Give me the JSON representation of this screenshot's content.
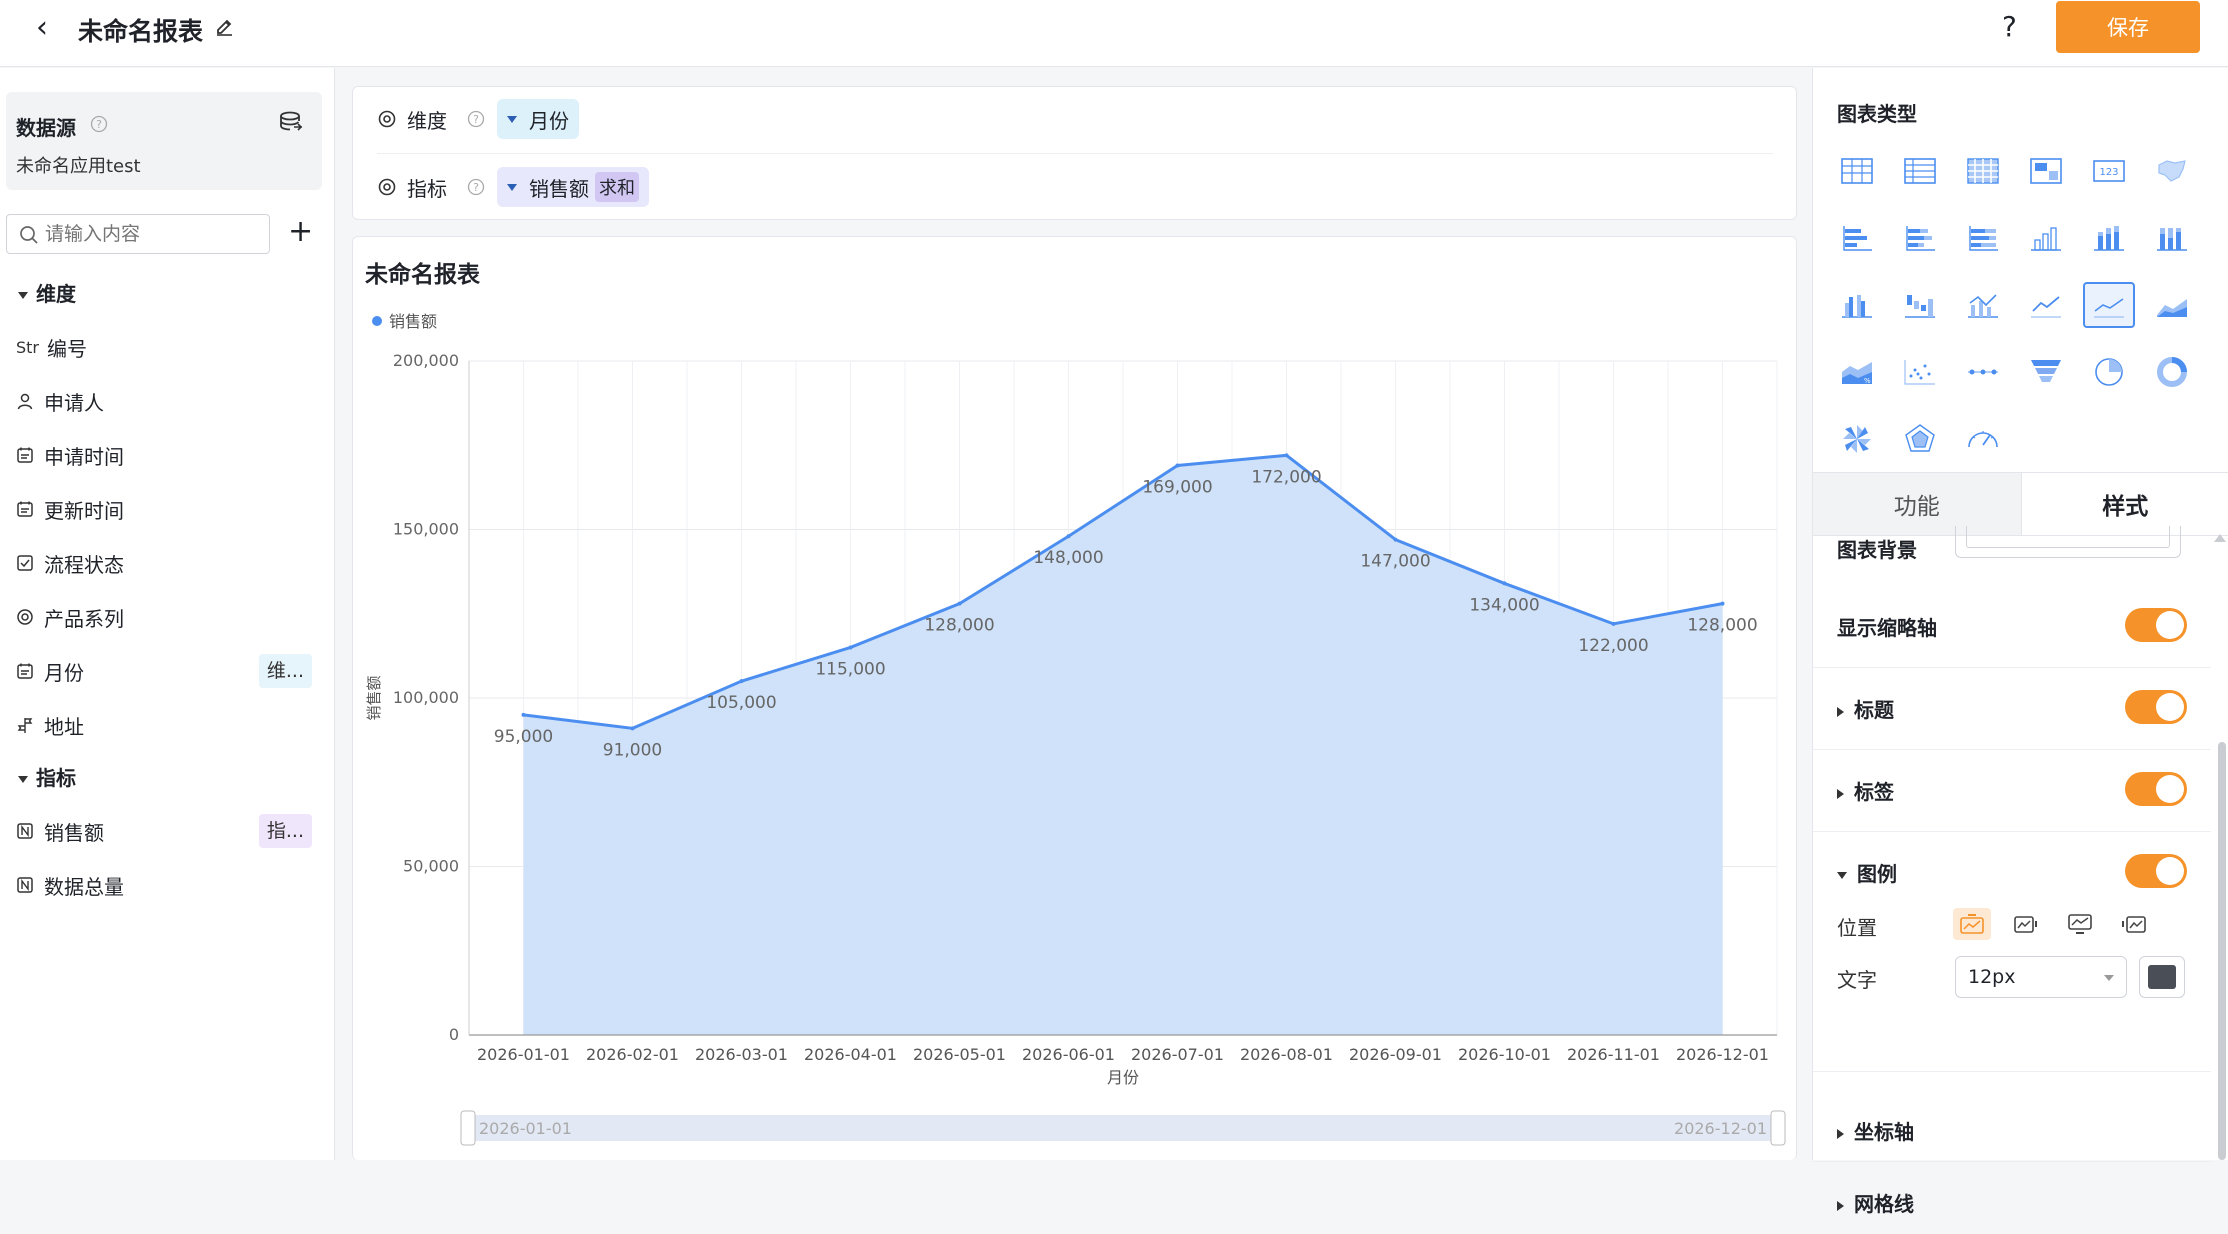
{
  "header": {
    "title": "未命名报表",
    "help": "?",
    "save_label": "保存"
  },
  "datasource": {
    "title": "数据源",
    "name": "未命名应用test"
  },
  "search": {
    "placeholder": "请输入内容"
  },
  "dimensions": {
    "label": "维度",
    "items": [
      {
        "label": "编号",
        "prefix": "Str",
        "icon": "string-icon"
      },
      {
        "label": "申请人",
        "icon": "user-icon"
      },
      {
        "label": "申请时间",
        "icon": "calendar-icon"
      },
      {
        "label": "更新时间",
        "icon": "calendar-icon"
      },
      {
        "label": "流程状态",
        "icon": "checkbox-icon"
      },
      {
        "label": "产品系列",
        "icon": "radio-icon"
      },
      {
        "label": "月份",
        "icon": "calendar-icon",
        "tag": "维..."
      },
      {
        "label": "地址",
        "icon": "location-icon"
      }
    ]
  },
  "metrics": {
    "label": "指标",
    "items": [
      {
        "label": "销售额",
        "icon": "number-icon",
        "tag": "指..."
      },
      {
        "label": "数据总量",
        "icon": "number-icon"
      }
    ]
  },
  "config": {
    "dimension_label": "维度",
    "dimension_value": "月份",
    "metric_label": "指标",
    "metric_value": "销售额",
    "metric_agg": "求和"
  },
  "chart_data": {
    "type": "area",
    "title": "未命名报表",
    "legend": "销售额",
    "legend_position": "top-left",
    "xlabel": "月份",
    "ylabel": "销售额",
    "categories": [
      "2026-01-01",
      "2026-02-01",
      "2026-03-01",
      "2026-04-01",
      "2026-05-01",
      "2026-06-01",
      "2026-07-01",
      "2026-08-01",
      "2026-09-01",
      "2026-10-01",
      "2026-11-01",
      "2026-12-01"
    ],
    "series": [
      {
        "name": "销售额",
        "values": [
          95000,
          91000,
          105000,
          115000,
          128000,
          148000,
          169000,
          172000,
          147000,
          134000,
          122000,
          128000
        ]
      }
    ],
    "data_labels": [
      "95,000",
      "91,000",
      "105,000",
      "115,000",
      "128,000",
      "148,000",
      "169,000",
      "172,000",
      "147,000",
      "134,000",
      "122,000",
      "128,000"
    ],
    "yticks": [
      "0",
      "50,000",
      "100,000",
      "150,000",
      "200,000"
    ],
    "ylim": [
      0,
      200000
    ],
    "grid": true,
    "slider_start": "2026-01-01",
    "slider_end": "2026-12-01",
    "line_color": "#4b8ef0",
    "fill_color": "#cce0fa"
  },
  "panel": {
    "chart_type_title": "图表类型",
    "tab_function": "功能",
    "tab_style": "样式",
    "bg_label": "图表背景",
    "rows": [
      {
        "label": "显示缩略轴",
        "caret": "none"
      },
      {
        "label": "标题",
        "caret": "right"
      },
      {
        "label": "标签",
        "caret": "right"
      },
      {
        "label": "图例",
        "caret": "down"
      }
    ],
    "position_label": "位置",
    "font_label": "文字",
    "font_size": "12px",
    "axis_label": "坐标轴",
    "grid_label": "网格线"
  }
}
